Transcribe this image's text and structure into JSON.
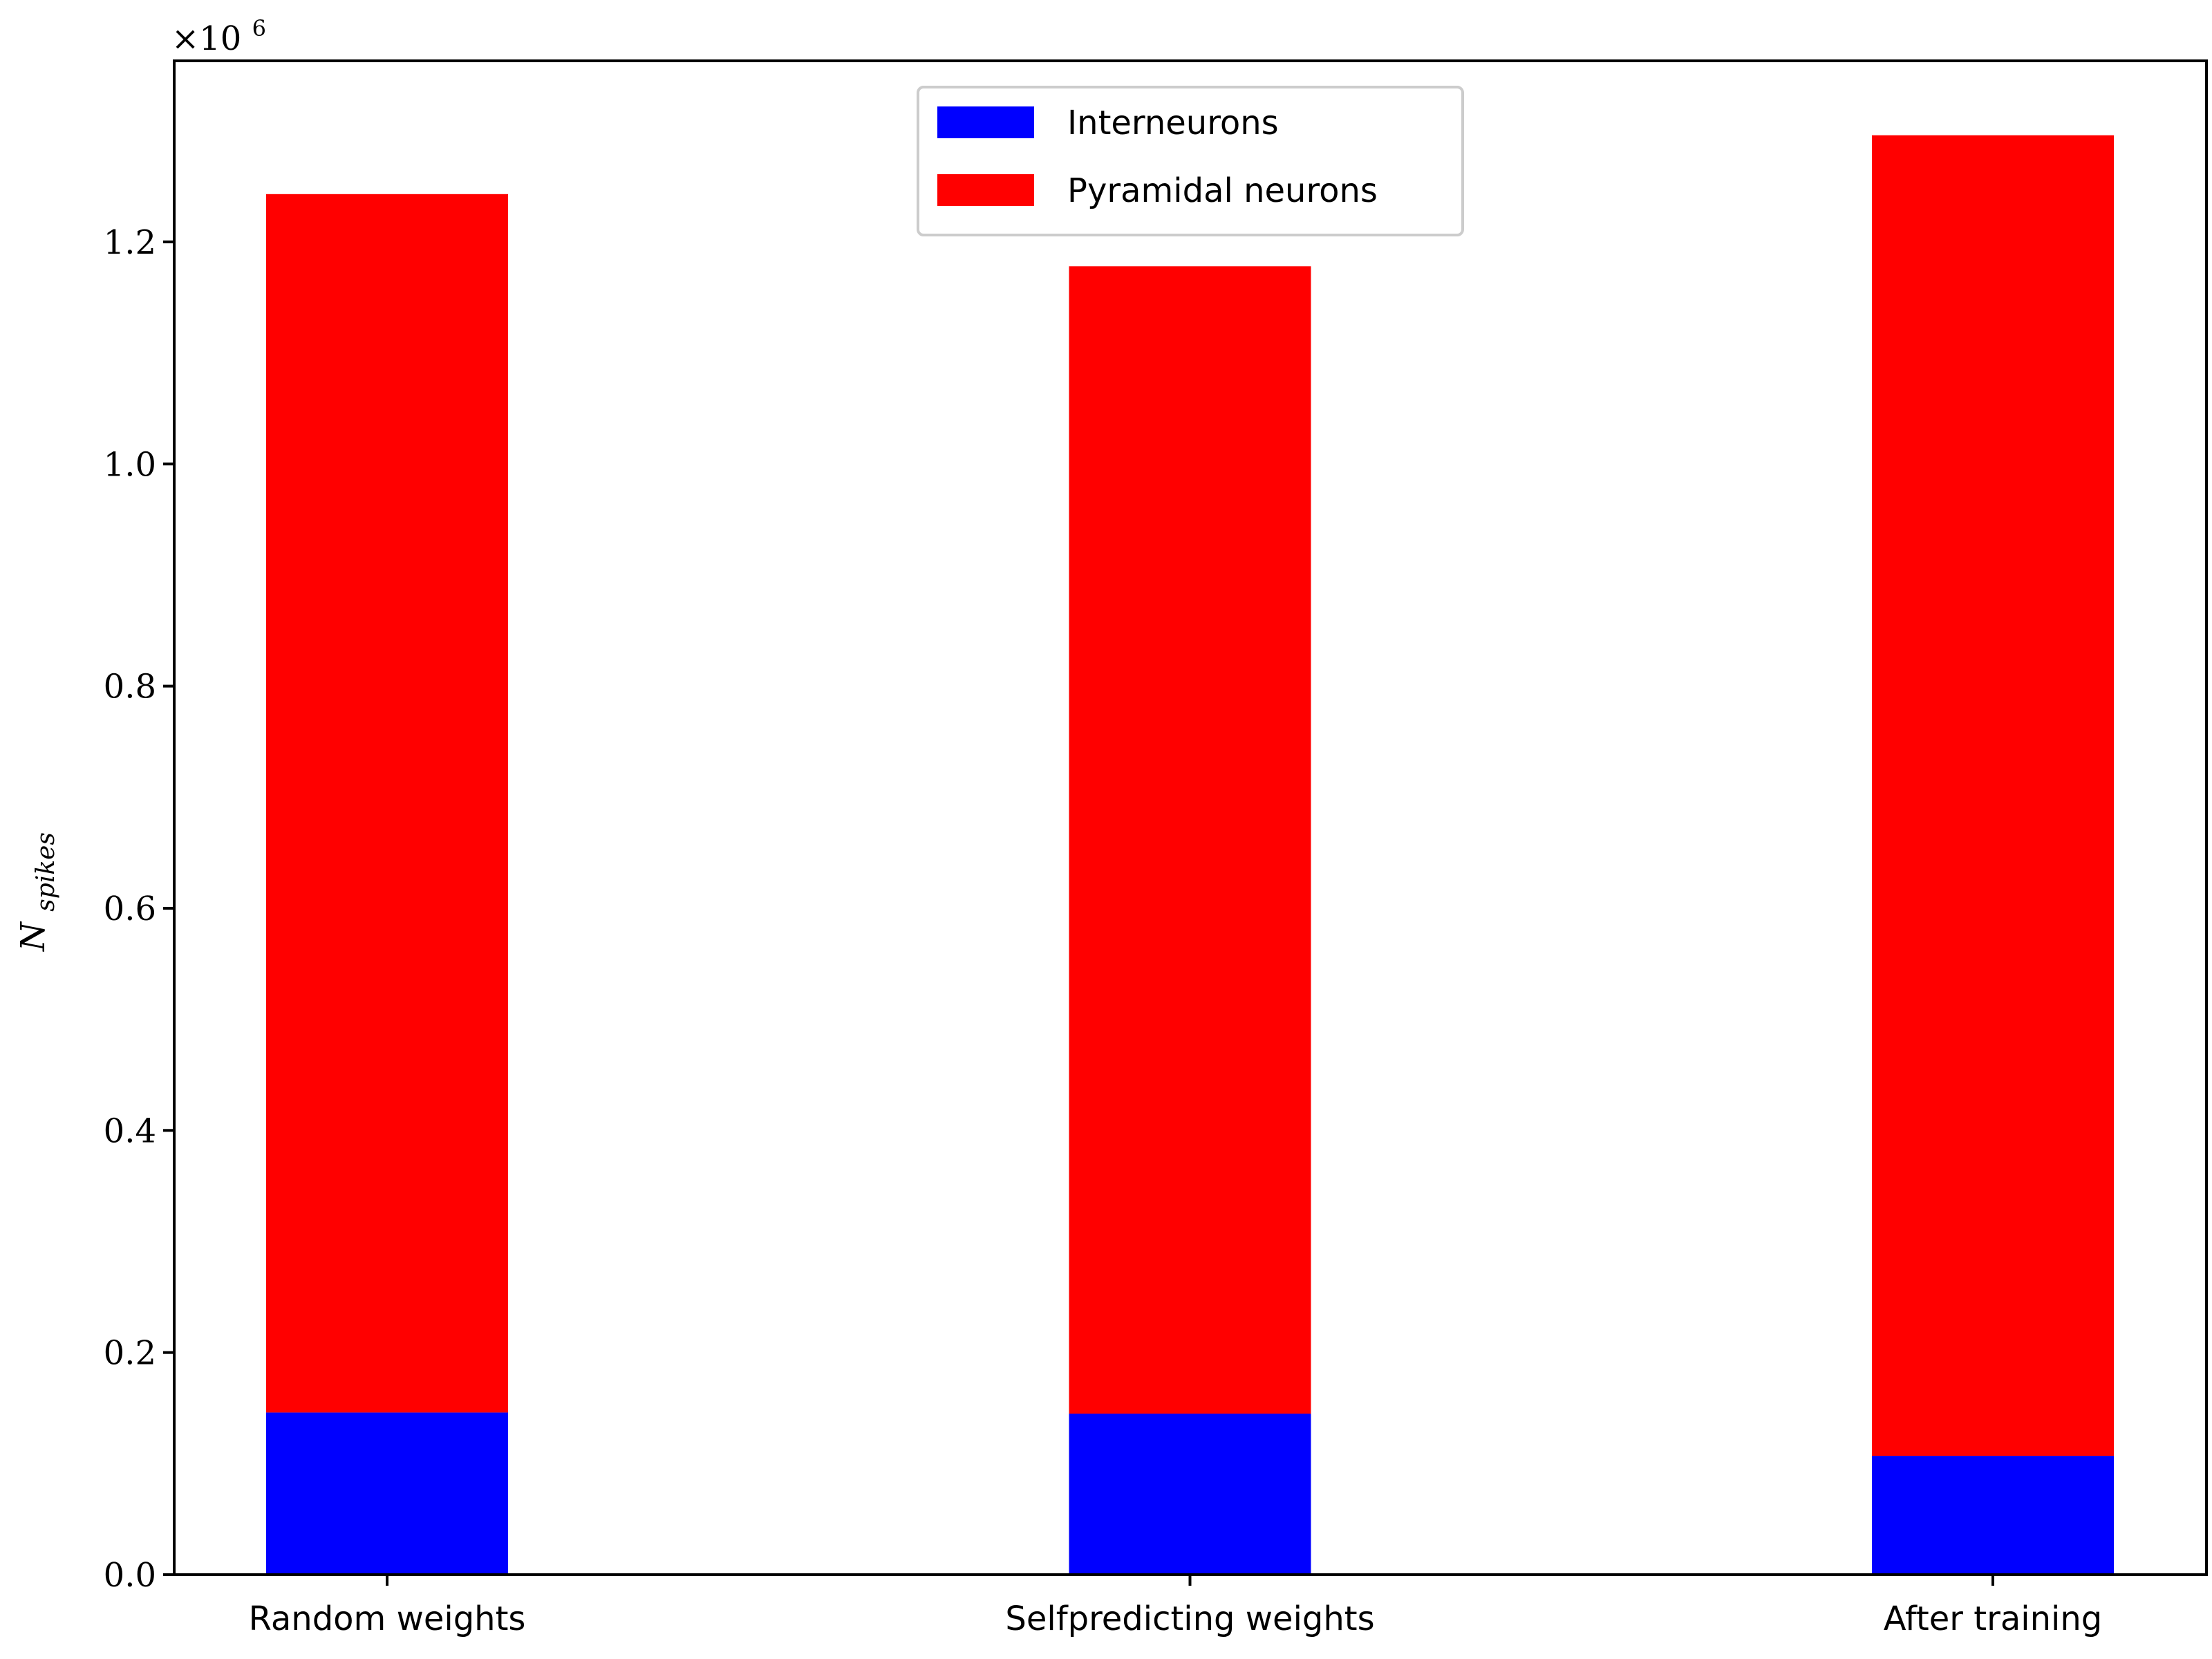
{
  "chart_data": {
    "type": "bar",
    "stacked": true,
    "categories": [
      "Random weights",
      "Selfpredicting weights",
      "After training"
    ],
    "series": [
      {
        "name": "Interneurons",
        "color": "#0000ff",
        "values": [
          146000,
          145000,
          107000
        ]
      },
      {
        "name": "Pyramidal neurons",
        "color": "#ff0000",
        "values": [
          1097000,
          1033000,
          1189000
        ]
      }
    ],
    "ylabel_base": "N",
    "ylabel_sub": "spikes",
    "ylim": [
      0,
      1363000
    ],
    "yticks": [
      0.0,
      0.2,
      0.4,
      0.6,
      0.8,
      1.0,
      1.2
    ],
    "ytick_labels": [
      "0.0",
      "0.2",
      "0.4",
      "0.6",
      "0.8",
      "1.0",
      "1.2"
    ],
    "y_offset_base": "×10",
    "y_offset_exp": "6",
    "legend_position": "upper center",
    "grid": false
  }
}
